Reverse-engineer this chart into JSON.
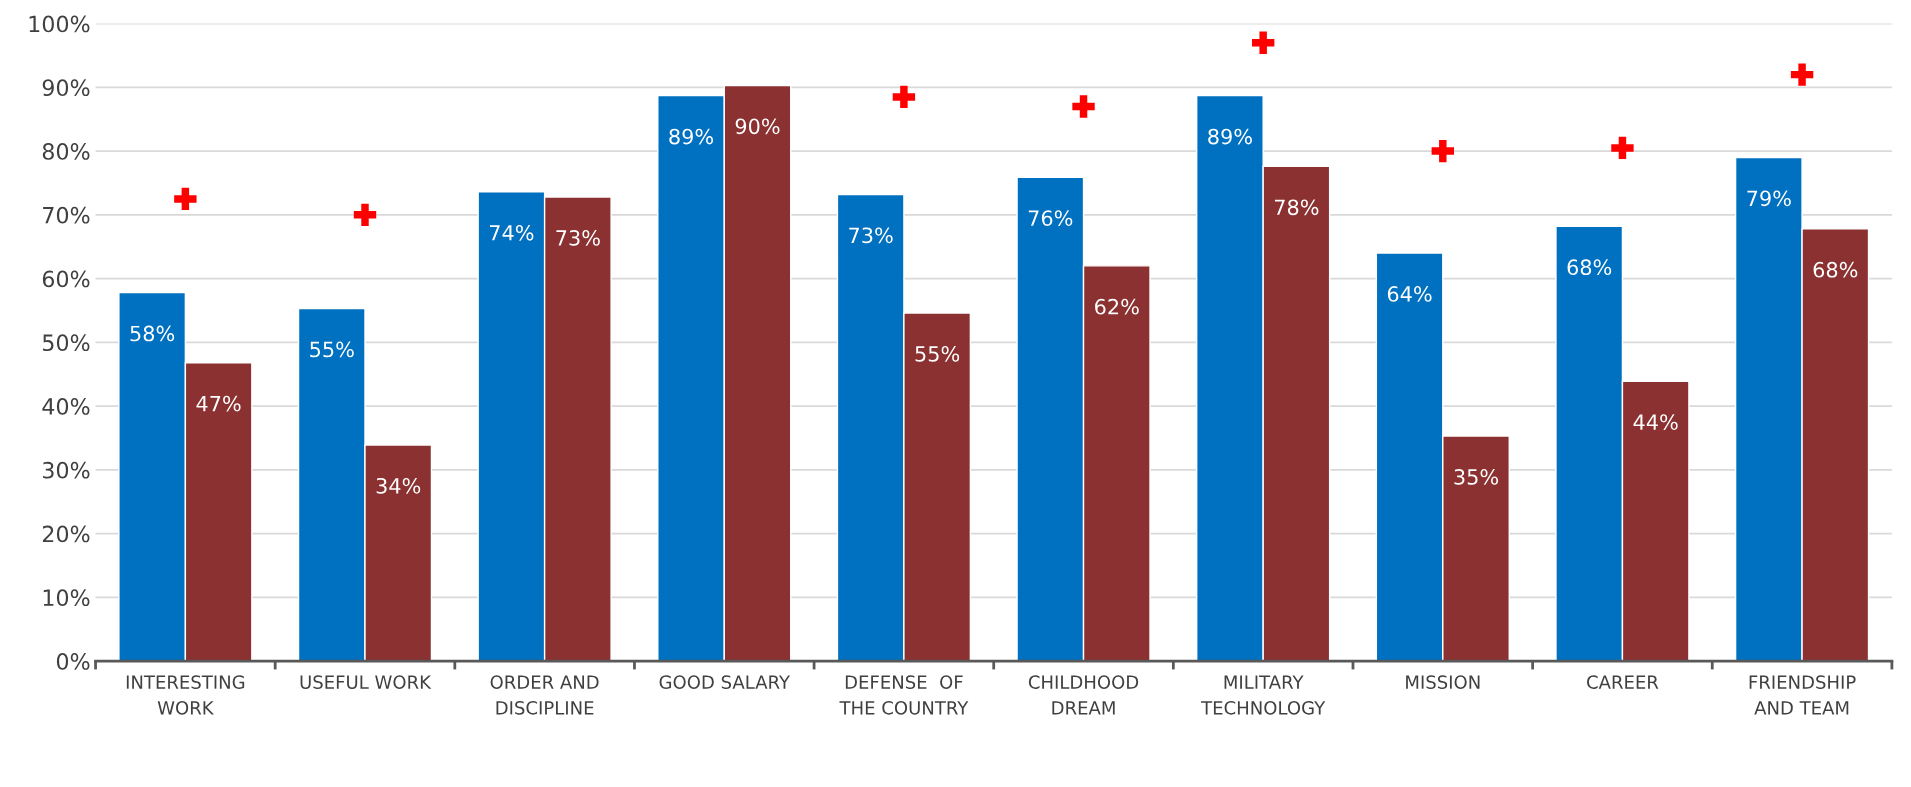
{
  "chart_data": {
    "type": "bar",
    "categories": [
      "INTERESTING\nWORK",
      "USEFUL WORK",
      "ORDER AND\nDISCIPLINE",
      "GOOD SALARY",
      "DEFENSE  OF\nTHE COUNTRY",
      "CHILDHOOD\nDREAM",
      "MILITARY\nTECHNOLOGY",
      "MISSION",
      "CAREER",
      "FRIENDSHIP\nAND TEAM"
    ],
    "series": [
      {
        "color": "#0070c0",
        "values": [
          57.8,
          55.3,
          73.6,
          88.7,
          73.2,
          75.9,
          88.7,
          64.0,
          68.2,
          79.0
        ],
        "value_labels": [
          "58%",
          "55%",
          "74%",
          "89%",
          "73%",
          "76%",
          "89%",
          "64%",
          "68%",
          "79%"
        ]
      },
      {
        "color": "#8b3131",
        "values": [
          46.8,
          33.9,
          72.8,
          90.3,
          54.6,
          62.0,
          77.6,
          35.3,
          43.9,
          67.8
        ],
        "value_labels": [
          "47%",
          "34%",
          "73%",
          "90%",
          "55%",
          "62%",
          "78%",
          "35%",
          "44%",
          "68%"
        ]
      },
      {
        "type": "scatter",
        "color": "#ff0000",
        "marker": "cross",
        "x": [
          "INTERESTING\nWORK",
          "USEFUL WORK",
          "ORDER AND\nDISCIPLINE",
          "GOOD SALARY",
          "DEFENSE  OF\nTHE COUNTRY",
          "CHILDHOOD\nDREAM",
          "MILITARY\nTECHNOLOGY",
          "MISSION",
          "CAREER",
          "FRIENDSHIP\nAND TEAM"
        ],
        "values": [
          72.5,
          70,
          null,
          null,
          88.5,
          87,
          97,
          80,
          80.5,
          92
        ]
      }
    ],
    "ylim": [
      0,
      100
    ],
    "yticks": [
      {
        "value": 0,
        "label": "0%"
      },
      {
        "value": 10,
        "label": "10%"
      },
      {
        "value": 20,
        "label": "20%"
      },
      {
        "value": 30,
        "label": "30%"
      },
      {
        "value": 40,
        "label": "40%"
      },
      {
        "value": 50,
        "label": "50%"
      },
      {
        "value": 60,
        "label": "60%"
      },
      {
        "value": 70,
        "label": "70%"
      },
      {
        "value": 80,
        "label": "80%"
      },
      {
        "value": 90,
        "label": "90%"
      },
      {
        "value": 100,
        "label": "100%"
      }
    ],
    "grid": "y"
  }
}
